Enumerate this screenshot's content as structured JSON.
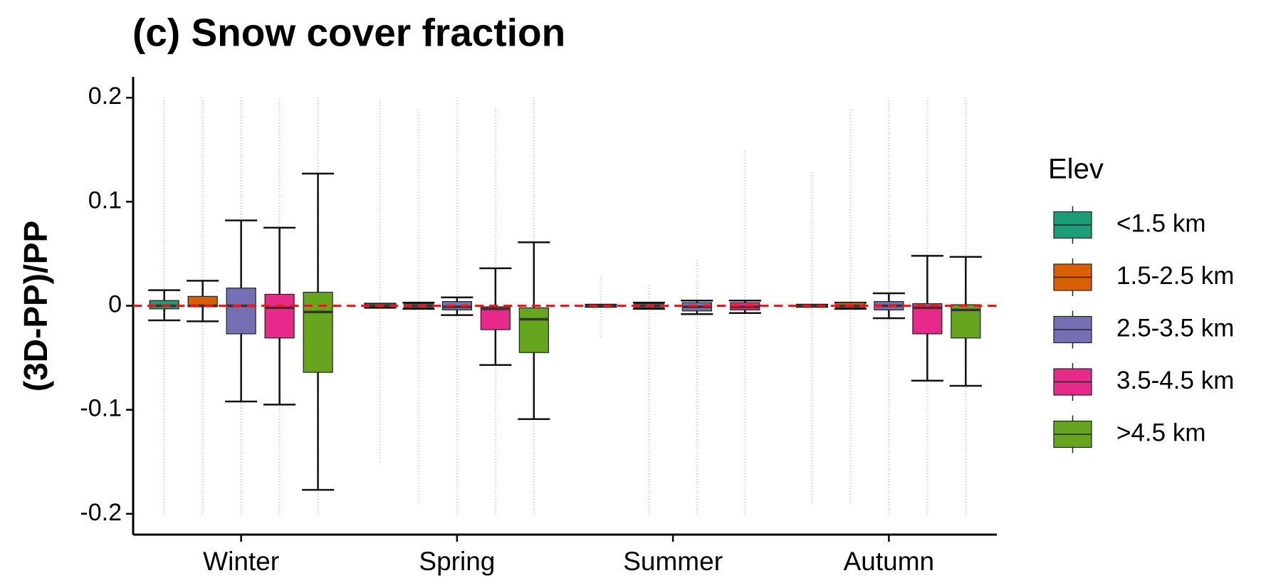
{
  "chart_data": {
    "type": "box",
    "title": "(c) Snow cover fraction",
    "ylabel": "(3D-PP)/PP",
    "categories": [
      "Winter",
      "Spring",
      "Summer",
      "Autumn"
    ],
    "legend_title": "Elev",
    "legend": "right",
    "ylim": [
      -0.22,
      0.22
    ],
    "yticks": [
      -0.2,
      -0.1,
      0.0,
      0.1,
      0.2
    ],
    "hline": 0,
    "hline_color": "#e41a1c",
    "series": [
      {
        "name": "<1.5 km",
        "color": "#1b9e77",
        "values": [
          [
            -0.014,
            -0.003,
            0,
            0.005,
            0.015
          ],
          [
            -0.002,
            -0.001,
            0,
            0.002,
            0.002
          ],
          [
            -0.001,
            0,
            0,
            0,
            0.001
          ],
          [
            -0.001,
            0,
            0,
            0.001,
            0.001
          ]
        ],
        "outliers": [
          [
            -0.2,
            0.2
          ],
          [
            -0.15,
            0.2
          ],
          [
            -0.03,
            0.03
          ],
          [
            -0.19,
            0.13
          ]
        ]
      },
      {
        "name": "1.5-2.5 km",
        "color": "#d95f02",
        "values": [
          [
            -0.015,
            -0.001,
            0,
            0.009,
            0.024
          ],
          [
            -0.003,
            -0.002,
            0,
            0.002,
            0.003
          ],
          [
            -0.003,
            -0.002,
            0,
            0.002,
            0.003
          ],
          [
            -0.003,
            -0.002,
            0,
            0.003,
            0.003
          ]
        ],
        "outliers": [
          [
            -0.2,
            0.2
          ],
          [
            -0.19,
            0.19
          ],
          [
            -0.2,
            0.02
          ],
          [
            -0.19,
            0.19
          ]
        ]
      },
      {
        "name": "2.5-3.5 km",
        "color": "#7570b3",
        "values": [
          [
            -0.092,
            -0.027,
            0,
            0.017,
            0.082
          ],
          [
            -0.009,
            -0.004,
            -0.001,
            0.004,
            0.008
          ],
          [
            -0.008,
            -0.005,
            -0.001,
            0.003,
            0.005
          ],
          [
            -0.012,
            -0.004,
            0,
            0.004,
            0.012
          ]
        ],
        "outliers": [
          [
            -0.2,
            0.2
          ],
          [
            -0.2,
            0.2
          ],
          [
            -0.2,
            0.045
          ],
          [
            -0.2,
            0.2
          ]
        ]
      },
      {
        "name": "3.5-4.5 km",
        "color": "#e7298a",
        "values": [
          [
            -0.095,
            -0.031,
            -0.002,
            0.011,
            0.075
          ],
          [
            -0.057,
            -0.023,
            -0.003,
            -0.001,
            0.036
          ],
          [
            -0.007,
            -0.004,
            -0.001,
            0.003,
            0.005
          ],
          [
            -0.072,
            -0.027,
            -0.002,
            0.002,
            0.048
          ]
        ],
        "outliers": [
          [
            -0.2,
            0.2
          ],
          [
            -0.2,
            0.19
          ],
          [
            -0.2,
            0.15
          ],
          [
            -0.2,
            0.2
          ]
        ]
      },
      {
        "name": ">4.5 km",
        "color": "#66a61e",
        "values": [
          [
            -0.177,
            -0.064,
            -0.006,
            0.013,
            0.127
          ],
          [
            -0.109,
            -0.045,
            -0.013,
            -0.002,
            0.061
          ],
          null,
          [
            -0.077,
            -0.031,
            -0.004,
            0.001,
            0.047
          ]
        ],
        "outliers": [
          [
            -0.2,
            0.2
          ],
          [
            -0.2,
            0.2
          ],
          null,
          [
            -0.2,
            0.2
          ]
        ]
      }
    ]
  }
}
